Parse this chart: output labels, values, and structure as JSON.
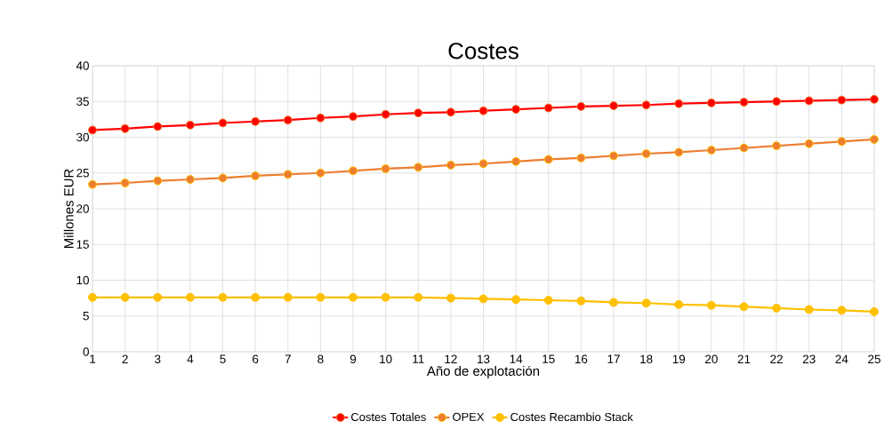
{
  "chart_data": {
    "type": "line",
    "title": "Costes",
    "xlabel": "Año de explotación",
    "ylabel": "Millones EUR",
    "categories": [
      "1",
      "2",
      "3",
      "4",
      "5",
      "6",
      "7",
      "8",
      "9",
      "10",
      "11",
      "12",
      "13",
      "14",
      "15",
      "16",
      "17",
      "18",
      "19",
      "20",
      "21",
      "22",
      "23",
      "24",
      "25"
    ],
    "series": [
      {
        "name": "Costes Totales",
        "color": "#ff0000",
        "values": [
          31.0,
          31.2,
          31.5,
          31.7,
          32.0,
          32.2,
          32.4,
          32.7,
          32.9,
          33.2,
          33.4,
          33.5,
          33.7,
          33.9,
          34.1,
          34.3,
          34.4,
          34.5,
          34.7,
          34.8,
          34.9,
          35.0,
          35.1,
          35.2,
          35.3
        ]
      },
      {
        "name": "OPEX",
        "color": "#ed7d31",
        "values": [
          23.4,
          23.6,
          23.9,
          24.1,
          24.3,
          24.6,
          24.8,
          25.0,
          25.3,
          25.6,
          25.8,
          26.1,
          26.3,
          26.6,
          26.9,
          27.1,
          27.4,
          27.7,
          27.9,
          28.2,
          28.5,
          28.8,
          29.1,
          29.4,
          29.7
        ]
      },
      {
        "name": "Costes Recambio Stack",
        "color": "#ffc000",
        "values": [
          7.6,
          7.6,
          7.6,
          7.6,
          7.6,
          7.6,
          7.6,
          7.6,
          7.6,
          7.6,
          7.6,
          7.5,
          7.4,
          7.3,
          7.2,
          7.1,
          6.9,
          6.8,
          6.6,
          6.5,
          6.3,
          6.1,
          5.9,
          5.8,
          5.6
        ]
      }
    ],
    "ylim": [
      0,
      40
    ],
    "yticks": [
      0,
      5,
      10,
      15,
      20,
      25,
      30,
      35,
      40
    ],
    "grid": true,
    "legend": "bottom",
    "marker": "circle",
    "line_style": "solid"
  }
}
